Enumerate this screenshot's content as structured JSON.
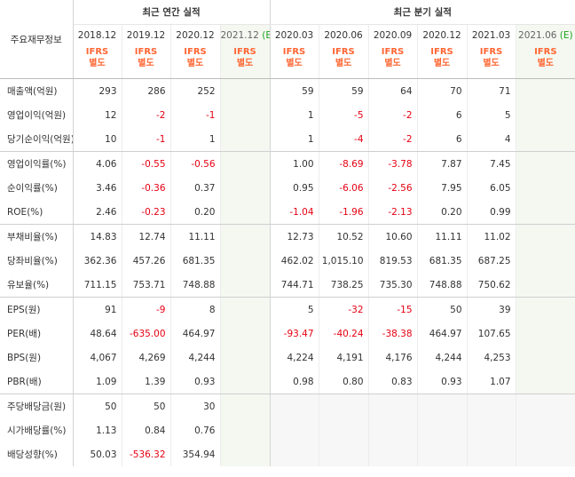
{
  "header": {
    "row_label": "주요재무정보",
    "annual_title": "최근 연간 실적",
    "quarterly_title": "최근 분기 실적",
    "annual_periods": [
      "2018.12",
      "2019.12",
      "2020.12"
    ],
    "annual_estimate": {
      "period": "2021.12",
      "flag": "(E)"
    },
    "quarterly_periods": [
      "2020.03",
      "2020.06",
      "2020.09",
      "2020.12",
      "2021.03"
    ],
    "quarterly_estimate": {
      "period": "2021.06",
      "flag": "(E)"
    },
    "ifrs_line1": "IFRS",
    "ifrs_line2": "별도"
  },
  "colors": {
    "negative": "#e60012",
    "ifrs": "#ff6633",
    "estimate_bg": "#f4f8f1",
    "estimate_flag": "#1fa01f"
  },
  "rows": [
    {
      "label": "매출액(억원)",
      "annual": [
        "293",
        "286",
        "252"
      ],
      "annual_est": "",
      "quarterly": [
        "59",
        "59",
        "64",
        "70",
        "71"
      ],
      "quarterly_est": ""
    },
    {
      "label": "영업이익(억원)",
      "annual": [
        "12",
        "-2",
        "-1"
      ],
      "annual_est": "",
      "quarterly": [
        "1",
        "-5",
        "-2",
        "6",
        "5"
      ],
      "quarterly_est": ""
    },
    {
      "label": "당기순이익(억원)",
      "annual": [
        "10",
        "-1",
        "1"
      ],
      "annual_est": "",
      "quarterly": [
        "1",
        "-4",
        "-2",
        "6",
        "4"
      ],
      "quarterly_est": ""
    },
    {
      "label": "영업이익률(%)",
      "annual": [
        "4.06",
        "-0.55",
        "-0.56"
      ],
      "annual_est": "",
      "quarterly": [
        "1.00",
        "-8.69",
        "-3.78",
        "7.87",
        "7.45"
      ],
      "quarterly_est": ""
    },
    {
      "label": "순이익률(%)",
      "annual": [
        "3.46",
        "-0.36",
        "0.37"
      ],
      "annual_est": "",
      "quarterly": [
        "0.95",
        "-6.06",
        "-2.56",
        "7.95",
        "6.05"
      ],
      "quarterly_est": ""
    },
    {
      "label": "ROE(%)",
      "annual": [
        "2.46",
        "-0.23",
        "0.20"
      ],
      "annual_est": "",
      "quarterly": [
        "-1.04",
        "-1.96",
        "-2.13",
        "0.20",
        "0.99"
      ],
      "quarterly_est": ""
    },
    {
      "label": "부채비율(%)",
      "annual": [
        "14.83",
        "12.74",
        "11.11"
      ],
      "annual_est": "",
      "quarterly": [
        "12.73",
        "10.52",
        "10.60",
        "11.11",
        "11.02"
      ],
      "quarterly_est": ""
    },
    {
      "label": "당좌비율(%)",
      "annual": [
        "362.36",
        "457.26",
        "681.35"
      ],
      "annual_est": "",
      "quarterly": [
        "462.02",
        "1,015.10",
        "819.53",
        "681.35",
        "687.25"
      ],
      "quarterly_est": ""
    },
    {
      "label": "유보율(%)",
      "annual": [
        "711.15",
        "753.71",
        "748.88"
      ],
      "annual_est": "",
      "quarterly": [
        "744.71",
        "738.25",
        "735.30",
        "748.88",
        "750.62"
      ],
      "quarterly_est": ""
    },
    {
      "label": "EPS(원)",
      "annual": [
        "91",
        "-9",
        "8"
      ],
      "annual_est": "",
      "quarterly": [
        "5",
        "-32",
        "-15",
        "50",
        "39"
      ],
      "quarterly_est": ""
    },
    {
      "label": "PER(배)",
      "annual": [
        "48.64",
        "-635.00",
        "464.97"
      ],
      "annual_est": "",
      "quarterly": [
        "-93.47",
        "-40.24",
        "-38.38",
        "464.97",
        "107.65"
      ],
      "quarterly_est": ""
    },
    {
      "label": "BPS(원)",
      "annual": [
        "4,067",
        "4,269",
        "4,244"
      ],
      "annual_est": "",
      "quarterly": [
        "4,224",
        "4,191",
        "4,176",
        "4,244",
        "4,253"
      ],
      "quarterly_est": ""
    },
    {
      "label": "PBR(배)",
      "annual": [
        "1.09",
        "1.39",
        "0.93"
      ],
      "annual_est": "",
      "quarterly": [
        "0.98",
        "0.80",
        "0.83",
        "0.93",
        "1.07"
      ],
      "quarterly_est": ""
    },
    {
      "label": "주당배당금(원)",
      "annual": [
        "50",
        "50",
        "30"
      ],
      "annual_est": "",
      "quarterly": [
        "",
        "",
        "",
        "",
        ""
      ],
      "quarterly_est": ""
    },
    {
      "label": "시가배당률(%)",
      "annual": [
        "1.13",
        "0.84",
        "0.76"
      ],
      "annual_est": "",
      "quarterly": [
        "",
        "",
        "",
        "",
        ""
      ],
      "quarterly_est": ""
    },
    {
      "label": "배당성향(%)",
      "annual": [
        "50.03",
        "-536.32",
        "354.94"
      ],
      "annual_est": "",
      "quarterly": [
        "",
        "",
        "",
        "",
        ""
      ],
      "quarterly_est": ""
    }
  ]
}
